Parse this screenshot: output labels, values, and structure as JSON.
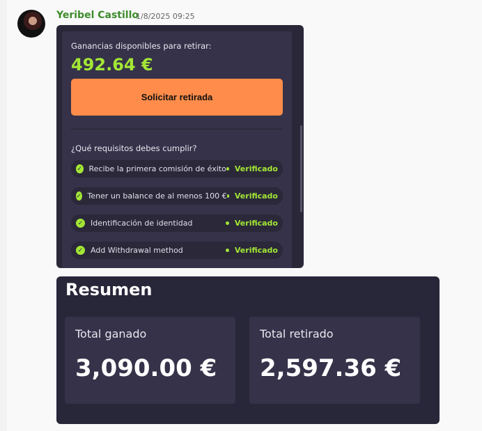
{
  "message": {
    "author": "Yeribel Castillo",
    "timestamp": "1/8/2025 09:25"
  },
  "withdraw": {
    "label": "Ganancias disponibles para retirar:",
    "amount": "492.64 €",
    "button": "Solicitar retirada",
    "requirements_title": "¿Qué requisitos debes cumplir?",
    "requirements": [
      {
        "text": "Recibe la primera comisión de éxito",
        "status": "Verificado"
      },
      {
        "text": "Tener un balance de al menos 100 €",
        "status": "Verificado"
      },
      {
        "text": "Identificación de identidad",
        "status": "Verificado"
      },
      {
        "text": "Add Withdrawal method",
        "status": "Verificado"
      }
    ]
  },
  "summary": {
    "title": "Resumen",
    "total_earned_label": "Total ganado",
    "total_earned": "3,090.00 €",
    "total_withdrawn_label": "Total retirado",
    "total_withdrawn": "2,597.36 €"
  },
  "colors": {
    "accent_green": "#a3e635",
    "button_orange": "#ff8c4a",
    "author_green": "#3d8b2b"
  }
}
